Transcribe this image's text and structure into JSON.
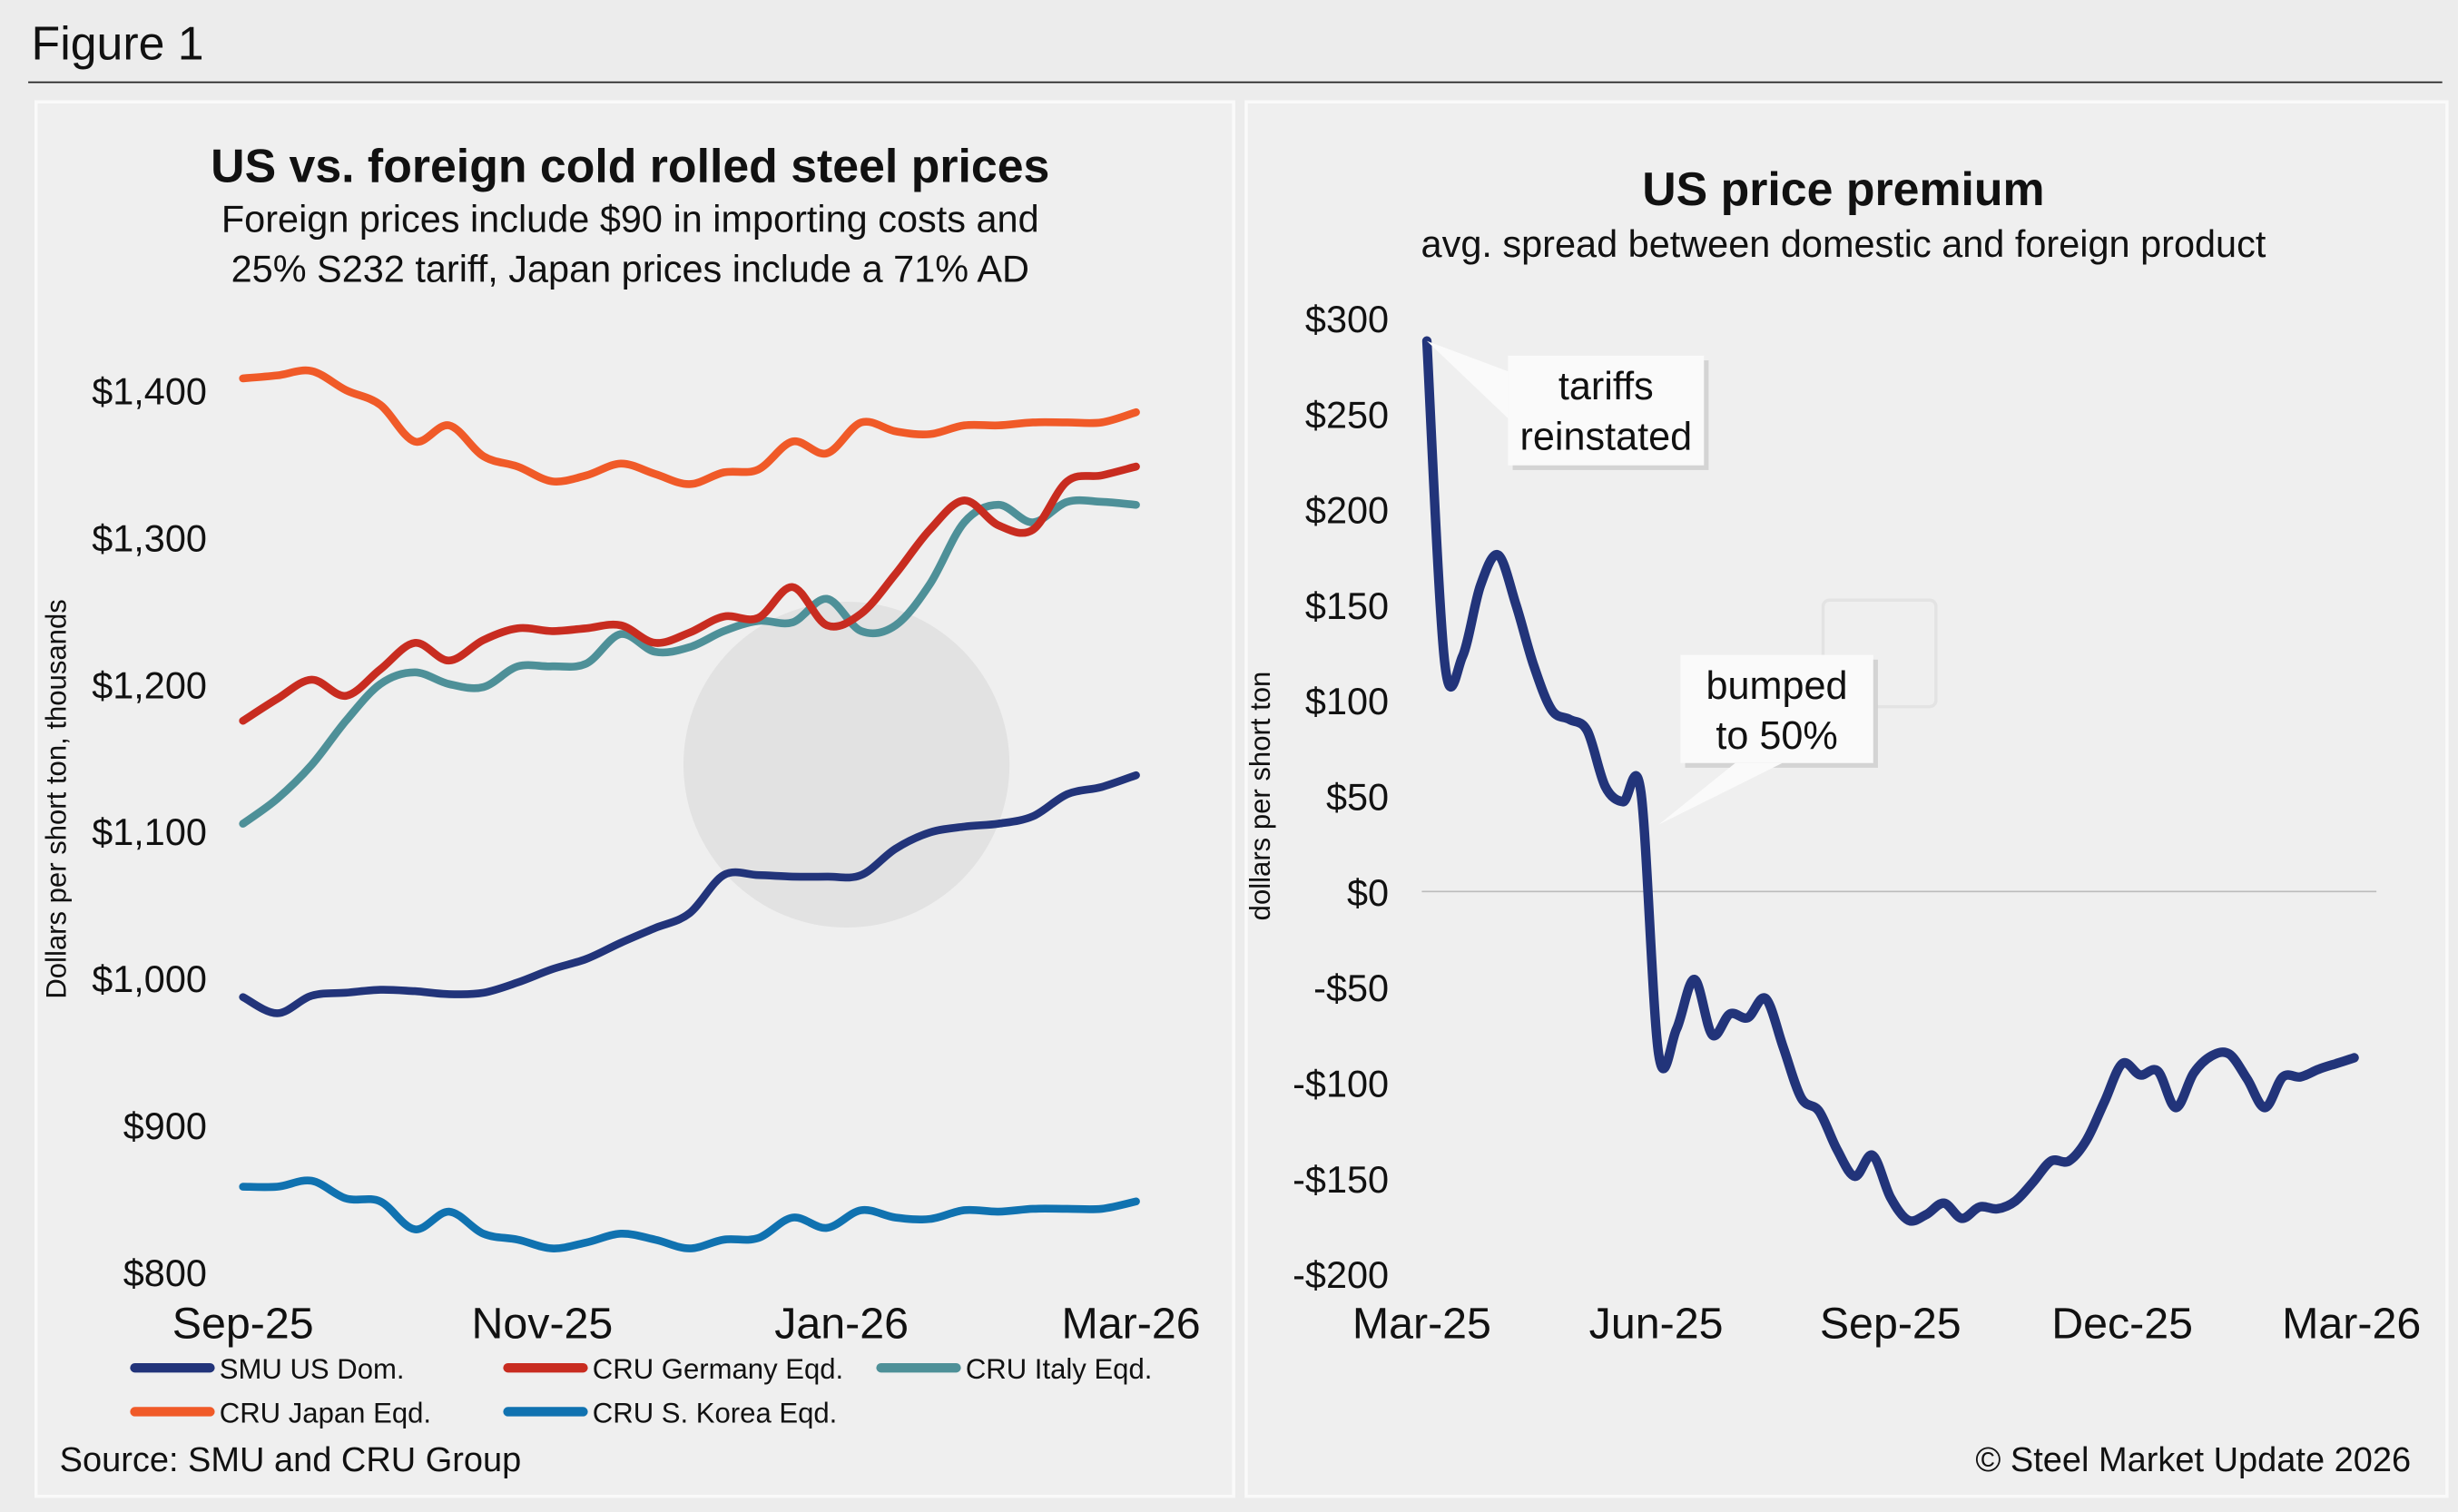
{
  "figure_label": "Figure 1",
  "watermark": "Steel Market Update",
  "watermark_logo": "CRU",
  "source": "Source: SMU and CRU Group",
  "copyright": "© Steel Market Update 2026",
  "chart_data": [
    {
      "type": "line",
      "title": "US vs. foreign cold rolled steel prices",
      "subtitle": [
        "Foreign prices include $90 in importing costs and",
        "25% S232 tariff, Japan prices include a 71% AD"
      ],
      "ylabel": "Dollars per short ton, thousands",
      "xlabel": "",
      "ylim": [
        800,
        1400
      ],
      "yticks": [
        800,
        900,
        1000,
        1100,
        1200,
        1300,
        1400
      ],
      "ytick_labels": [
        "$800",
        "$900",
        "$1,000",
        "$1,100",
        "$1,200",
        "$1,300",
        "$1,400"
      ],
      "xtick_labels": [
        "Sep-25",
        "Nov-25",
        "Jan-26",
        "Mar-26"
      ],
      "xtick_dates": [
        "2025-09-01",
        "2025-11-01",
        "2026-01-01",
        "2026-03-01"
      ],
      "grid": false,
      "legend_position": "bottom",
      "x_start": "2025-09-01",
      "x_step_days": 7,
      "series": [
        {
          "name": "SMU US Dom.",
          "color": "#22347a",
          "values": [
            987,
            976,
            988,
            990,
            992,
            991,
            989,
            990,
            997,
            1006,
            1013,
            1024,
            1034,
            1044,
            1070,
            1070,
            1069,
            1069,
            1070,
            1088,
            1099,
            1103,
            1105,
            1110,
            1125,
            1130,
            1138
          ]
        },
        {
          "name": "CRU Germany Eqd.",
          "color": "#c82c20",
          "values": [
            1175,
            1190,
            1203,
            1192,
            1210,
            1228,
            1216,
            1230,
            1238,
            1236,
            1238,
            1240,
            1228,
            1235,
            1246,
            1245,
            1266,
            1240,
            1248,
            1275,
            1305,
            1325,
            1308,
            1305,
            1338,
            1342,
            1348
          ]
        },
        {
          "name": "CRU Italy Eqd.",
          "color": "#4e9098",
          "values": [
            1105,
            1122,
            1145,
            1175,
            1200,
            1208,
            1200,
            1198,
            1212,
            1212,
            1214,
            1234,
            1222,
            1225,
            1236,
            1243,
            1242,
            1258,
            1236,
            1240,
            1268,
            1310,
            1322,
            1310,
            1324,
            1324,
            1322
          ]
        },
        {
          "name": "CRU Japan Eqd.",
          "color": "#f05a28",
          "values": [
            1408,
            1410,
            1413,
            1400,
            1390,
            1365,
            1376,
            1355,
            1348,
            1338,
            1342,
            1350,
            1343,
            1336,
            1344,
            1346,
            1365,
            1357,
            1378,
            1372,
            1370,
            1376,
            1376,
            1378,
            1378,
            1378,
            1385
          ]
        },
        {
          "name": "CRU S. Korea Eqd.",
          "color": "#1072b0",
          "values": [
            858,
            858,
            862,
            850,
            848,
            829,
            841,
            826,
            822,
            816,
            820,
            826,
            822,
            816,
            822,
            823,
            837,
            830,
            842,
            837,
            836,
            842,
            841,
            843,
            843,
            843,
            848
          ]
        }
      ]
    },
    {
      "type": "line",
      "title": "US price premium",
      "subtitle": "avg. spread between domestic and foreign product",
      "ylabel": "dollars per short ton",
      "xlabel": "",
      "ylim": [
        -200,
        300
      ],
      "yticks": [
        -200,
        -150,
        -100,
        -50,
        0,
        50,
        100,
        150,
        200,
        250,
        300
      ],
      "ytick_labels": [
        "-$200",
        "-$150",
        "-$100",
        "-$50",
        "$0",
        "$50",
        "$100",
        "$150",
        "$200",
        "$250",
        "$300"
      ],
      "xtick_labels": [
        "Mar-25",
        "Jun-25",
        "Sep-25",
        "Dec-25",
        "Mar-26"
      ],
      "xtick_dates": [
        "2025-03-01",
        "2025-06-01",
        "2025-09-01",
        "2025-12-01",
        "2026-03-01"
      ],
      "grid": false,
      "zero_line": true,
      "x_start": "2025-03-03",
      "x_step_days": 7,
      "series": [
        {
          "color": "#22347a",
          "values": [
            288,
            120,
            123,
            160,
            176,
            150,
            118,
            95,
            90,
            84,
            55,
            47,
            52,
            -85,
            -72,
            -46,
            -75,
            -64,
            -66,
            -56,
            -82,
            -108,
            -115,
            -135,
            -149,
            -138,
            -160,
            -172,
            -169,
            -163,
            -171,
            -165,
            -166,
            -162,
            -152,
            -141,
            -141,
            -130,
            -110,
            -90,
            -96,
            -94,
            -113,
            -95,
            -86,
            -85,
            -98,
            -113,
            -97,
            -97,
            -93,
            -90,
            -87
          ]
        }
      ],
      "annotations": [
        {
          "text": [
            "tariffs",
            "reinstated"
          ],
          "date": "2025-03-03",
          "value": 288
        },
        {
          "text": [
            "bumped",
            "to 50%"
          ],
          "date": "2025-06-02",
          "value": 35
        }
      ]
    }
  ]
}
